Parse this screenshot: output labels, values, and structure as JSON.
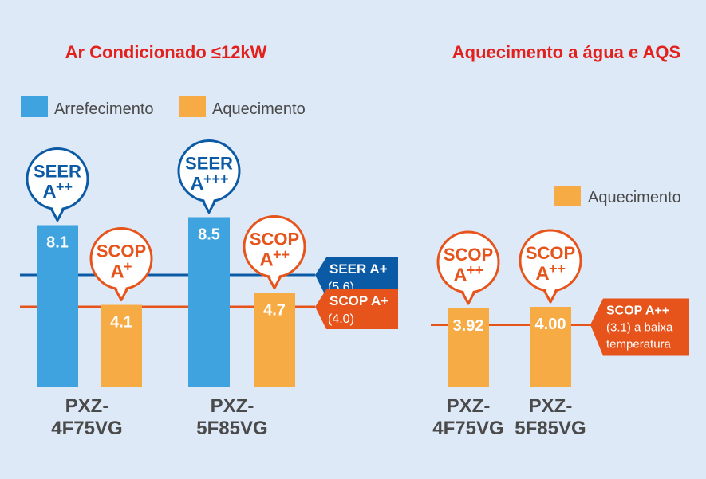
{
  "colors": {
    "background": "#dde9f6",
    "cooling": "#3fa3e0",
    "heating": "#f7ab45",
    "seer_line": "#0b5aa6",
    "scop_line": "#e6541c",
    "title_red": "#e3201b",
    "axis_text": "#4a4a4a"
  },
  "chart_data": [
    {
      "type": "bar",
      "title": "Ar Condicionado ≤12kW",
      "categories": [
        "PXZ-\n4F75VG",
        "PXZ-\n5F85VG"
      ],
      "category_lines": [
        [
          "PXZ-",
          "4F75VG"
        ],
        [
          "PXZ-",
          "5F85VG"
        ]
      ],
      "legend": [
        "Arrefecimento",
        "Aquecimento"
      ],
      "legend_position": "top-left",
      "series": [
        {
          "name": "Arrefecimento",
          "values": [
            8.1,
            8.5
          ],
          "labels": [
            "8.1",
            "8.5"
          ],
          "color": "#3fa3e0"
        },
        {
          "name": "Aquecimento",
          "values": [
            4.1,
            4.7
          ],
          "labels": [
            "4.1",
            "4.7"
          ],
          "color": "#f7ab45"
        }
      ],
      "badges": [
        {
          "series": 0,
          "category": 0,
          "lines": [
            "SEER",
            "A",
            "++"
          ],
          "color": "#0b5aa6"
        },
        {
          "series": 1,
          "category": 0,
          "lines": [
            "SCOP",
            "A",
            "+"
          ],
          "color": "#e6541c"
        },
        {
          "series": 0,
          "category": 1,
          "lines": [
            "SEER",
            "A",
            "+++"
          ],
          "color": "#0b5aa6"
        },
        {
          "series": 1,
          "category": 1,
          "lines": [
            "SCOP",
            "A",
            "++"
          ],
          "color": "#e6541c"
        }
      ],
      "reference_lines": [
        {
          "value": 5.6,
          "line1": "SEER A+",
          "line2": "(5.6)",
          "color": "#0b5aa6"
        },
        {
          "value": 4.0,
          "line1": "SCOP A+",
          "line2": "(4.0)",
          "color": "#e6541c"
        }
      ],
      "grid": false
    },
    {
      "type": "bar",
      "title": "Aquecimento a água e AQS",
      "categories": [
        "PXZ-\n4F75VG",
        "PXZ-\n5F85VG"
      ],
      "category_lines": [
        [
          "PXZ-",
          "4F75VG"
        ],
        [
          "PXZ-",
          "5F85VG"
        ]
      ],
      "legend": [
        "Aquecimento"
      ],
      "legend_position": "top-right",
      "series": [
        {
          "name": "Aquecimento",
          "values": [
            3.92,
            4.0
          ],
          "labels": [
            "3.92",
            "4.00"
          ],
          "color": "#f7ab45"
        }
      ],
      "badges": [
        {
          "series": 0,
          "category": 0,
          "lines": [
            "SCOP",
            "A",
            "++"
          ],
          "color": "#e6541c"
        },
        {
          "series": 0,
          "category": 1,
          "lines": [
            "SCOP",
            "A",
            "++"
          ],
          "color": "#e6541c"
        }
      ],
      "reference_lines": [
        {
          "value": 3.1,
          "line1": "SCOP A++",
          "line2": "(3.1) a baixa",
          "line3": "temperatura",
          "color": "#e6541c"
        }
      ],
      "grid": false
    }
  ]
}
